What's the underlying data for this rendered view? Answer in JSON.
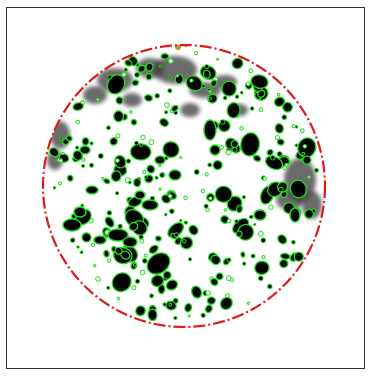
{
  "figure": {
    "subject": "petri-dish-colony-segmentation",
    "colors": {
      "background": "#ffffff",
      "frame": "#333333",
      "dish_outline": "#e0191b",
      "colony_fill": "#000000",
      "colony_contour": "#1fdc1f",
      "smear": "#3a3a3a",
      "debris": "#c48a2a"
    },
    "dish_outline_style": "dash-dot",
    "colony_count_visible": "many"
  }
}
